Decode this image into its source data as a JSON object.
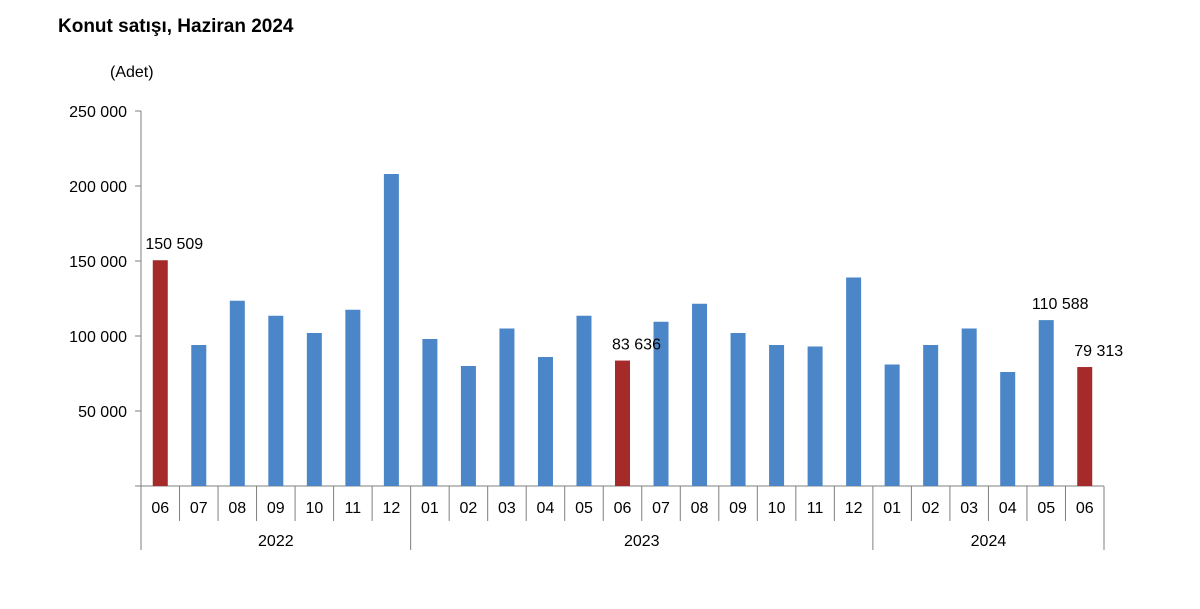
{
  "chart_data": {
    "type": "bar",
    "title": "Konut satışı, Haziran 2024",
    "unit_label": "(Adet)",
    "ylim": [
      0,
      250000
    ],
    "yticks": [
      {
        "value": 50000,
        "label": "50 000"
      },
      {
        "value": 100000,
        "label": "100 000"
      },
      {
        "value": 150000,
        "label": "150 000"
      },
      {
        "value": 200000,
        "label": "200 000"
      },
      {
        "value": 250000,
        "label": "250 000"
      }
    ],
    "categories": [
      "06",
      "07",
      "08",
      "09",
      "10",
      "11",
      "12",
      "01",
      "02",
      "03",
      "04",
      "05",
      "06",
      "07",
      "08",
      "09",
      "10",
      "11",
      "12",
      "01",
      "02",
      "03",
      "04",
      "05",
      "06"
    ],
    "years": [
      {
        "label": "2022",
        "count": 7
      },
      {
        "label": "2023",
        "count": 12
      },
      {
        "label": "2024",
        "count": 6
      }
    ],
    "values": [
      150509,
      94000,
      123500,
      113500,
      102000,
      117500,
      208000,
      98000,
      80000,
      105000,
      86000,
      113500,
      83636,
      109500,
      121500,
      102000,
      94000,
      93000,
      139000,
      81000,
      94000,
      105000,
      76000,
      110588,
      79313
    ],
    "colors": {
      "default": "#4a86c8",
      "highlight": "#a52a2a",
      "axis": "#7f7f7f"
    },
    "highlight_indices": [
      0,
      12,
      24
    ],
    "data_labels": [
      {
        "index": 0,
        "text": "150 509"
      },
      {
        "index": 12,
        "text": "83 636"
      },
      {
        "index": 23,
        "text": "110 588"
      },
      {
        "index": 24,
        "text": "79 313"
      }
    ],
    "grid": false,
    "legend": "none"
  }
}
